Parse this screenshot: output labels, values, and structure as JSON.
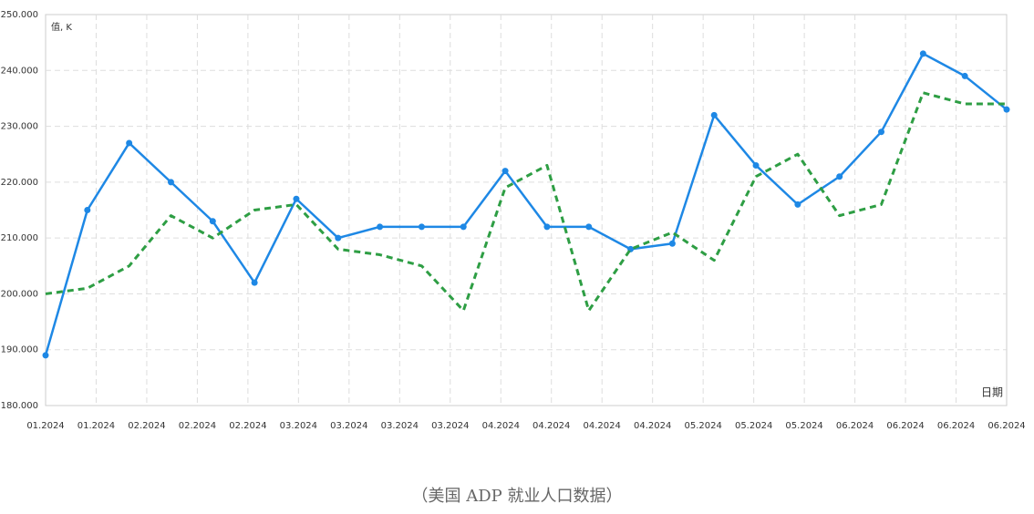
{
  "chart_data": {
    "type": "line",
    "y_label": "值, K",
    "x_label": "日期",
    "caption": "（美国 ADP 就业人口数据）",
    "x": [
      0,
      1,
      2,
      3,
      4,
      5,
      6,
      7,
      8,
      9,
      10,
      11,
      12,
      13,
      14,
      15,
      16,
      17,
      18,
      19,
      20,
      21,
      22,
      23
    ],
    "xlim": [
      0,
      23
    ],
    "xticks": [
      {
        "value": 0,
        "label": "01.2024"
      },
      {
        "value": 1.2105,
        "label": "01.2024"
      },
      {
        "value": 2.4211,
        "label": "02.2024"
      },
      {
        "value": 3.6316,
        "label": "02.2024"
      },
      {
        "value": 4.8421,
        "label": "02.2024"
      },
      {
        "value": 6.0526,
        "label": "03.2024"
      },
      {
        "value": 7.2632,
        "label": "03.2024"
      },
      {
        "value": 8.4737,
        "label": "03.2024"
      },
      {
        "value": 9.6842,
        "label": "03.2024"
      },
      {
        "value": 10.8947,
        "label": "04.2024"
      },
      {
        "value": 12.1053,
        "label": "04.2024"
      },
      {
        "value": 13.3158,
        "label": "04.2024"
      },
      {
        "value": 14.5263,
        "label": "04.2024"
      },
      {
        "value": 15.7368,
        "label": "05.2024"
      },
      {
        "value": 16.9474,
        "label": "05.2024"
      },
      {
        "value": 18.1579,
        "label": "05.2024"
      },
      {
        "value": 19.3684,
        "label": "06.2024"
      },
      {
        "value": 20.5789,
        "label": "06.2024"
      },
      {
        "value": 21.7895,
        "label": "06.2024"
      },
      {
        "value": 23,
        "label": "06.2024"
      }
    ],
    "ylim": [
      180000,
      250000
    ],
    "yticks": [
      {
        "value": 180000,
        "label": "180.000"
      },
      {
        "value": 190000,
        "label": "190.000"
      },
      {
        "value": 200000,
        "label": "200.000"
      },
      {
        "value": 210000,
        "label": "210.000"
      },
      {
        "value": 220000,
        "label": "220.000"
      },
      {
        "value": 230000,
        "label": "230.000"
      },
      {
        "value": 240000,
        "label": "240.000"
      },
      {
        "value": 250000,
        "label": "250.000"
      }
    ],
    "grid": true,
    "series": [
      {
        "color": "#1e88e5",
        "dashed": false,
        "markers": true,
        "values": [
          189000,
          215000,
          227000,
          220000,
          213000,
          202000,
          217000,
          210000,
          212000,
          212000,
          212000,
          222000,
          212000,
          212000,
          208000,
          209000,
          232000,
          223000,
          216000,
          221000,
          229000,
          243000,
          239000,
          233000
        ]
      },
      {
        "color": "#2e9e44",
        "dashed": true,
        "markers": false,
        "values": [
          200000,
          201000,
          205000,
          214000,
          210000,
          215000,
          216000,
          208000,
          207000,
          205000,
          197000,
          219000,
          223000,
          197000,
          208000,
          211000,
          206000,
          221000,
          225000,
          214000,
          216000,
          236000,
          234000,
          234000
        ]
      }
    ]
  }
}
